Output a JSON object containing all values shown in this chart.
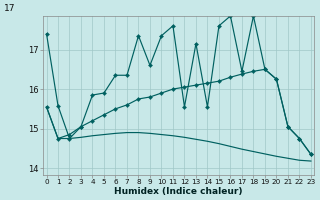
{
  "xlabel": "Humidex (Indice chaleur)",
  "background_color": "#c8e8e8",
  "grid_color": "#a0c8c8",
  "line_color": "#006060",
  "xlim": [
    -0.3,
    23.3
  ],
  "ylim": [
    13.82,
    17.85
  ],
  "yticks": [
    14,
    15,
    16,
    17
  ],
  "xticks": [
    0,
    1,
    2,
    3,
    4,
    5,
    6,
    7,
    8,
    9,
    10,
    11,
    12,
    13,
    14,
    15,
    16,
    17,
    18,
    19,
    20,
    21,
    22,
    23
  ],
  "top_label": "17",
  "s1_x": [
    0,
    1,
    2,
    3,
    4,
    5,
    6,
    7,
    8,
    9,
    10,
    11,
    12,
    13,
    14,
    15,
    16,
    17,
    18,
    19,
    20,
    21,
    22,
    23
  ],
  "s1_y": [
    17.4,
    15.58,
    14.75,
    15.05,
    15.85,
    15.9,
    16.35,
    16.35,
    17.35,
    16.6,
    17.35,
    17.6,
    15.55,
    17.15,
    15.55,
    17.6,
    17.85,
    16.45,
    17.85,
    16.5,
    16.25,
    15.05,
    14.75,
    14.35
  ],
  "s2_x": [
    0,
    1,
    2,
    3,
    4,
    5,
    6,
    7,
    8,
    9,
    10,
    11,
    12,
    13,
    14,
    15,
    16,
    17,
    18,
    19,
    20,
    21,
    22,
    23
  ],
  "s2_y": [
    15.55,
    14.75,
    14.85,
    15.05,
    15.2,
    15.35,
    15.5,
    15.6,
    15.75,
    15.8,
    15.9,
    16.0,
    16.05,
    16.1,
    16.15,
    16.2,
    16.3,
    16.38,
    16.45,
    16.5,
    16.25,
    15.05,
    14.75,
    14.35
  ],
  "s3_x": [
    0,
    1,
    2,
    3,
    4,
    5,
    6,
    7,
    8,
    9,
    10,
    11,
    12,
    13,
    14,
    15,
    16,
    17,
    18,
    19,
    20,
    21,
    22,
    23
  ],
  "s3_y": [
    15.55,
    14.75,
    14.75,
    14.78,
    14.82,
    14.85,
    14.88,
    14.9,
    14.9,
    14.88,
    14.85,
    14.82,
    14.78,
    14.73,
    14.68,
    14.62,
    14.55,
    14.48,
    14.42,
    14.36,
    14.3,
    14.25,
    14.2,
    14.18
  ]
}
